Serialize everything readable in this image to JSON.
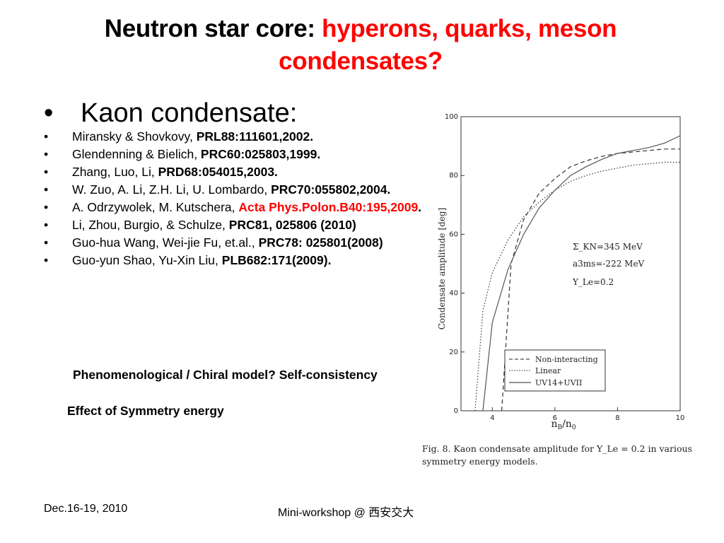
{
  "title": {
    "black": "Neutron star core: ",
    "red_line1": "hyperons, quarks, meson",
    "red_line2": "condensates?"
  },
  "heading": {
    "bullet": "•",
    "text": "Kaon condensate:"
  },
  "references": [
    {
      "bullet": "•",
      "plain": "Miransky & Shovkovy, ",
      "bold": "PRL88:111601,2002."
    },
    {
      "bullet": "•",
      "plain": "Glendenning & Bielich, ",
      "bold": "PRC60:025803,1999."
    },
    {
      "bullet": "•",
      "plain": " Zhang, Luo, Li, ",
      "bold": "PRD68:054015,2003."
    },
    {
      "bullet": "•",
      "plain": " W. Zuo, A. Li, Z.H. Li, U. Lombardo, ",
      "bold": "PRC70:055802,2004."
    },
    {
      "bullet": "•",
      "plain": "A. Odrzywolek,    M. Kutschera, ",
      "red_bold": "Acta Phys.Polon.B40:195,2009",
      "tail": "."
    },
    {
      "bullet": "•",
      "plain": "Li, Zhou, Burgio, & Schulze, ",
      "bold": "PRC81, 025806 (2010)"
    },
    {
      "bullet": "•",
      "plain": "Guo-hua Wang, Wei-jie Fu, et.al., ",
      "bold": "PRC78: 025801(2008)"
    },
    {
      "bullet": "•",
      "plain": "Guo-yun Shao, Yu-Xin Liu, ",
      "bold": "PLB682:171(2009)."
    }
  ],
  "notes": {
    "model": "Phenomenological / Chiral model?    Self-consistency",
    "symmetry": "Effect of Symmetry energy"
  },
  "figure": {
    "ylabel": "Condensate amplitude [deg]",
    "xlabel_main": "n",
    "xlabel_sub1": "B",
    "xlabel_slash": "/n",
    "xlabel_sub2": "0",
    "params": [
      "Σ_KN=345 MeV",
      "a3ms=-222 MeV",
      "Y_Le=0.2"
    ],
    "legend": [
      "Non-interacting",
      "Linear",
      "UV14+UVII"
    ],
    "caption_line1": "Fig. 8.  Kaon condensate amplitude for Y_Le = 0.2 in various",
    "caption_line2": "symmetry energy models."
  },
  "chart_data": {
    "type": "line",
    "ylabel": "Condensate amplitude [deg]",
    "xlabel": "n_B/n_0",
    "xlim": [
      3,
      10
    ],
    "ylim": [
      0,
      100
    ],
    "xticks": [
      4,
      6,
      8,
      10
    ],
    "yticks": [
      0,
      20,
      40,
      60,
      80,
      100
    ],
    "legend_position": "bottom-right",
    "series": [
      {
        "name": "Non-interacting",
        "style": "dashed",
        "x": [
          4.3,
          4.6,
          5.0,
          5.5,
          6.0,
          6.5,
          7.0,
          7.5,
          8.0,
          8.5,
          9.0,
          9.5,
          10.0
        ],
        "y": [
          0,
          50,
          65,
          74,
          79,
          83,
          85,
          86.5,
          87.5,
          88,
          88.5,
          89,
          89
        ]
      },
      {
        "name": "Linear",
        "style": "dotted",
        "x": [
          3.45,
          3.7,
          4.0,
          4.5,
          5.0,
          5.5,
          6.0,
          6.5,
          7.0,
          7.5,
          8.0,
          8.5,
          9.0,
          9.5,
          10.0
        ],
        "y": [
          0,
          34,
          47,
          58,
          66,
          71,
          75,
          78,
          80,
          81.5,
          82.5,
          83.5,
          84,
          84.5,
          84.5
        ]
      },
      {
        "name": "UV14+UVII",
        "style": "solid",
        "x": [
          3.7,
          4.0,
          4.5,
          5.0,
          5.5,
          6.0,
          6.5,
          7.0,
          7.5,
          8.0,
          8.5,
          9.0,
          9.5,
          10.0
        ],
        "y": [
          0,
          30,
          48,
          60,
          69,
          75,
          80,
          83,
          85.5,
          87.5,
          88.5,
          89.5,
          91,
          93.5
        ]
      }
    ]
  },
  "footer": {
    "date": "Dec.16-19, 2010",
    "workshop": "Mini-workshop @ 西安交大"
  }
}
